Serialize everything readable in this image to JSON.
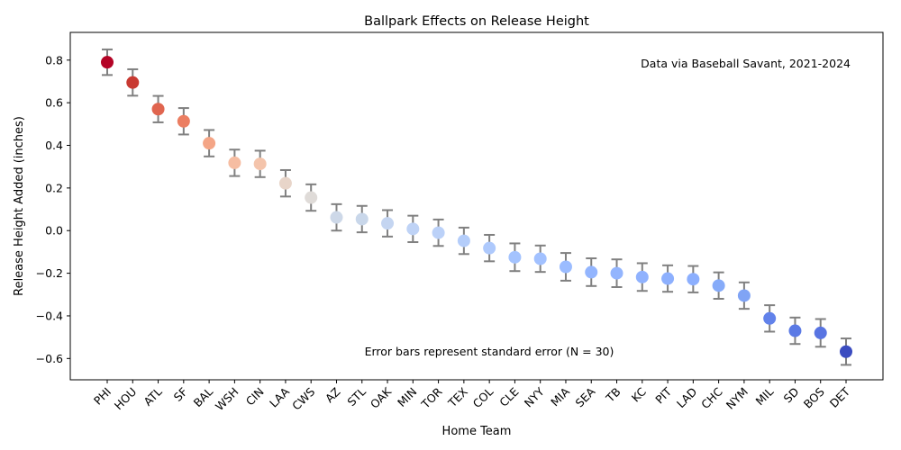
{
  "chart_data": {
    "type": "scatter",
    "title": "Ballpark Effects on Release Height",
    "xlabel": "Home Team",
    "ylabel": "Release Height Added (inches)",
    "annotation_top": "Data via Baseball Savant, 2021-2024",
    "annotation_bottom": "Error bars represent standard error (N = 30)",
    "ylim": [
      -0.7,
      0.93
    ],
    "yticks": [
      -0.6,
      -0.4,
      -0.2,
      0.0,
      0.2,
      0.4,
      0.6,
      0.8
    ],
    "ytick_labels": [
      "−0.6",
      "−0.4",
      "−0.2",
      "0.0",
      "0.2",
      "0.4",
      "0.6",
      "0.8"
    ],
    "grid": false,
    "error_bar_color": "#808080",
    "categories": [
      "PHI",
      "HOU",
      "ATL",
      "SF",
      "BAL",
      "WSH",
      "CIN",
      "LAA",
      "CWS",
      "AZ",
      "STL",
      "OAK",
      "MIN",
      "TOR",
      "TEX",
      "COL",
      "CLE",
      "NYY",
      "MIA",
      "SEA",
      "TB",
      "KC",
      "PIT",
      "LAD",
      "CHC",
      "NYM",
      "MIL",
      "SD",
      "BOS",
      "DET"
    ],
    "values": [
      0.79,
      0.695,
      0.57,
      0.513,
      0.41,
      0.318,
      0.313,
      0.222,
      0.155,
      0.062,
      0.054,
      0.034,
      0.008,
      -0.01,
      -0.048,
      -0.082,
      -0.125,
      -0.132,
      -0.17,
      -0.195,
      -0.2,
      -0.218,
      -0.225,
      -0.228,
      -0.258,
      -0.305,
      -0.412,
      -0.47,
      -0.48,
      -0.568
    ],
    "errors": [
      0.06,
      0.062,
      0.062,
      0.062,
      0.062,
      0.062,
      0.062,
      0.062,
      0.062,
      0.062,
      0.062,
      0.062,
      0.062,
      0.062,
      0.062,
      0.062,
      0.065,
      0.062,
      0.065,
      0.065,
      0.065,
      0.065,
      0.062,
      0.062,
      0.062,
      0.062,
      0.062,
      0.062,
      0.065,
      0.062
    ],
    "colors": [
      "#b40426",
      "#c83a32",
      "#e0654f",
      "#eb7e62",
      "#f4a586",
      "#f6bda2",
      "#f4c4ab",
      "#e8d5c9",
      "#dfdbd8",
      "#cdd8e8",
      "#c9d7ea",
      "#c4d5f1",
      "#bfd3f6",
      "#bbd1f8",
      "#b4cdfa",
      "#aec9fc",
      "#a4c3fe",
      "#a2c1ff",
      "#9bbcff",
      "#93b5fe",
      "#93b5fe",
      "#90b2fe",
      "#8db0fe",
      "#8caffe",
      "#86abf9",
      "#80a4f5",
      "#6282ea",
      "#5b7ae5",
      "#5874e2",
      "#3b4cc0"
    ]
  }
}
